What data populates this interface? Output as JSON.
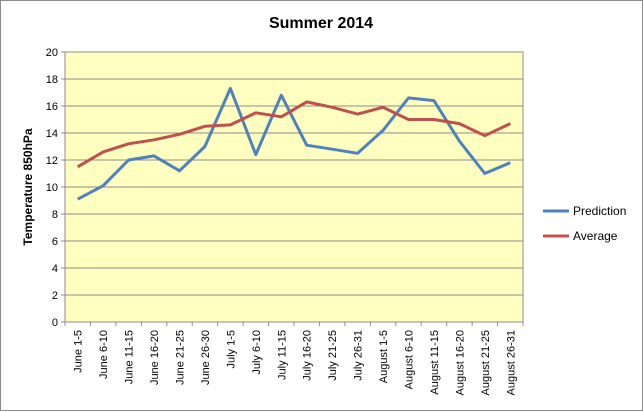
{
  "chart_data": {
    "type": "line",
    "title": "Summer 2014",
    "xlabel": "",
    "ylabel": "Temperature 850hPa",
    "ylim": [
      0,
      20
    ],
    "yticks": [
      0,
      2,
      4,
      6,
      8,
      10,
      12,
      14,
      16,
      18,
      20
    ],
    "grid": true,
    "legend_position": "right",
    "categories": [
      "June 1-5",
      "June 6-10",
      "June 11-15",
      "June 16-20",
      "June 21-25",
      "June 26-30",
      "July 1-5",
      "July 6-10",
      "July 11-15",
      "July 16-20",
      "July 21-25",
      "July 26-31",
      "August 1-5",
      "August 6-10",
      "August 11-15",
      "August 16-20",
      "August 21-25",
      "August 26-31"
    ],
    "series": [
      {
        "name": "Prediction",
        "color": "#4f81bd",
        "values": [
          9.1,
          10.1,
          12.0,
          12.3,
          11.2,
          13.0,
          17.3,
          12.4,
          16.8,
          13.1,
          12.8,
          12.5,
          14.2,
          16.6,
          16.4,
          13.4,
          11.0,
          11.8
        ]
      },
      {
        "name": "Average",
        "color": "#c0504d",
        "values": [
          11.5,
          12.6,
          13.2,
          13.5,
          13.9,
          14.5,
          14.6,
          15.5,
          15.2,
          16.3,
          15.9,
          15.4,
          15.9,
          15.0,
          15.0,
          14.7,
          13.8,
          14.7
        ]
      }
    ],
    "plot_background": "#ffffc0"
  }
}
